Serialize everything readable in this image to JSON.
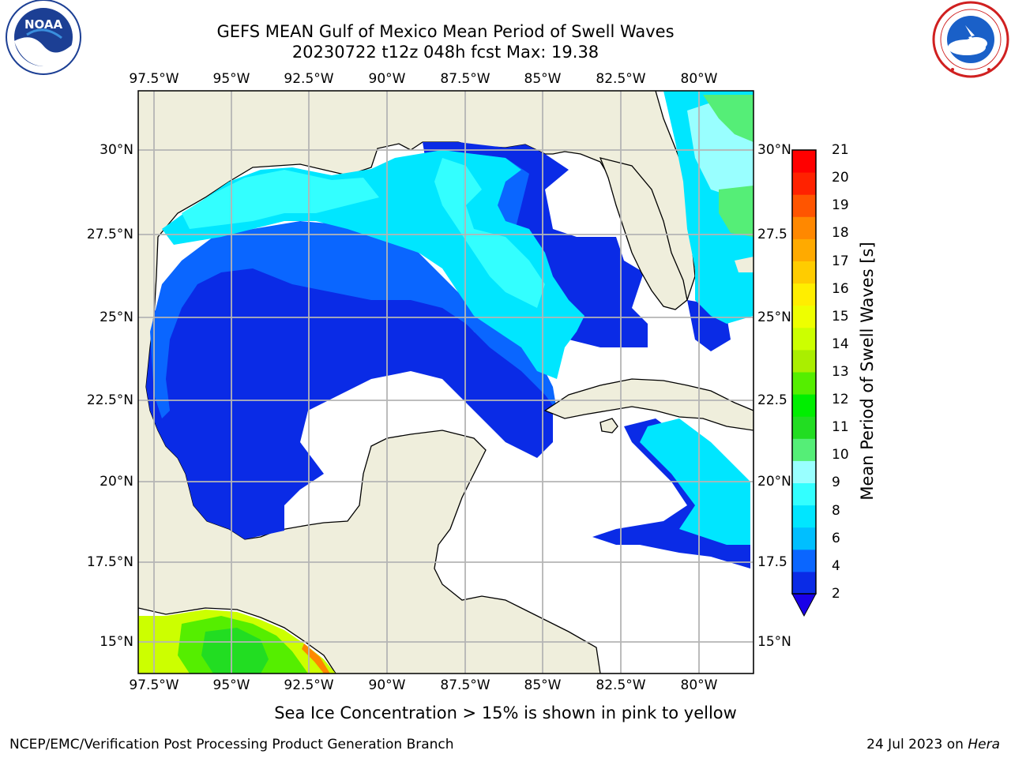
{
  "title": "GEFS MEAN Gulf of Mexico Mean Period of Swell Waves",
  "subtitle": "20230722 t12z 048h fcst   Max: 19.38",
  "logos": {
    "left": {
      "name": "NOAA",
      "text": "NOAA"
    },
    "right": {
      "name": "National Weather Service"
    }
  },
  "map": {
    "lon_ticks": [
      "97.5°W",
      "95°W",
      "92.5°W",
      "90°W",
      "87.5°W",
      "85°W",
      "82.5°W",
      "80°W"
    ],
    "lat_ticks_left": [
      "30°N",
      "27.5°N",
      "25°N",
      "22.5°N",
      "20°N",
      "17.5°N",
      "15°N"
    ],
    "lat_ticks_right": [
      "30°N",
      "27.5",
      "25°N",
      "22.5",
      "20°N",
      "17.5",
      "15°N"
    ],
    "colors": {
      "land": "#efeedc",
      "ocean_no_data": "#ffffff",
      "grid": "#b5b5b5"
    }
  },
  "colorbar": {
    "label": "Mean Period of Swell Waves [s]",
    "ticks": [
      "2",
      "4",
      "6",
      "8",
      "9",
      "10",
      "11",
      "12",
      "13",
      "14",
      "15",
      "16",
      "17",
      "18",
      "19",
      "20",
      "21"
    ],
    "colors": [
      "#0a2be6",
      "#0a66ff",
      "#00bfff",
      "#00e6ff",
      "#33ffff",
      "#99ffff",
      "#55ee77",
      "#22dd22",
      "#00ee00",
      "#55ee00",
      "#aaee00",
      "#ccff00",
      "#eeff00",
      "#ffee00",
      "#ffcc00",
      "#ffaa00",
      "#ff8800",
      "#ff5500",
      "#ff2200",
      "#ff0000"
    ],
    "extend_color": "#1a00e8"
  },
  "note": "Sea Ice Concentration > 15% is shown in pink to yellow",
  "footer": {
    "left": "NCEP/EMC/Verification Post Processing Product Generation Branch",
    "right_date": "24 Jul 2023 on ",
    "right_host": "Hera"
  }
}
